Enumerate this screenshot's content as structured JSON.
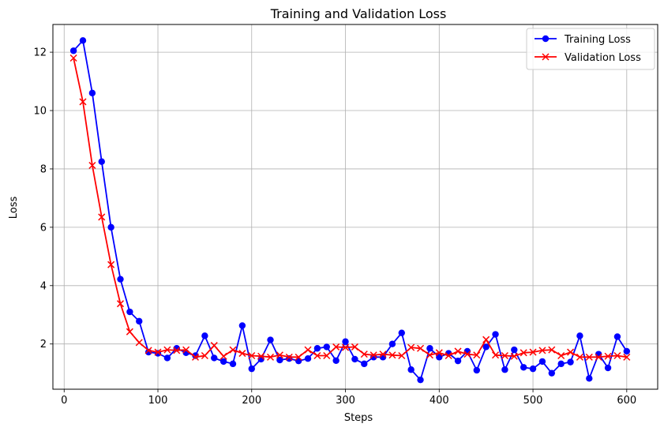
{
  "chart_data": {
    "type": "line",
    "title": "Training and Validation Loss",
    "xlabel": "Steps",
    "ylabel": "Loss",
    "xlim": [
      -12,
      633
    ],
    "ylim": [
      0.45,
      12.95
    ],
    "xticks": [
      0,
      100,
      200,
      300,
      400,
      500,
      600
    ],
    "yticks": [
      2,
      4,
      6,
      8,
      10,
      12
    ],
    "grid": true,
    "legend_position": "top-right",
    "x": [
      10,
      20,
      30,
      40,
      50,
      60,
      70,
      80,
      90,
      100,
      110,
      120,
      130,
      140,
      150,
      160,
      170,
      180,
      190,
      200,
      210,
      220,
      230,
      240,
      250,
      260,
      270,
      280,
      290,
      300,
      310,
      320,
      330,
      340,
      350,
      360,
      370,
      380,
      390,
      400,
      410,
      420,
      430,
      440,
      450,
      460,
      470,
      480,
      490,
      500,
      510,
      520,
      530,
      540,
      550,
      560,
      570,
      580,
      590,
      600
    ],
    "series": [
      {
        "name": "Training Loss",
        "color": "#0000ff",
        "marker": "circle",
        "values": [
          12.05,
          12.4,
          10.6,
          8.25,
          6.0,
          4.22,
          3.1,
          2.78,
          1.72,
          1.68,
          1.52,
          1.85,
          1.7,
          1.6,
          2.28,
          1.52,
          1.4,
          1.32,
          2.63,
          1.15,
          1.48,
          2.14,
          1.45,
          1.5,
          1.42,
          1.5,
          1.85,
          1.9,
          1.43,
          2.08,
          1.48,
          1.32,
          1.55,
          1.55,
          2.0,
          2.38,
          1.12,
          0.77,
          1.85,
          1.55,
          1.68,
          1.42,
          1.75,
          1.1,
          1.9,
          2.33,
          1.12,
          1.8,
          1.2,
          1.15,
          1.4,
          1.0,
          1.32,
          1.38,
          2.28,
          0.82,
          1.65,
          1.18,
          2.25,
          1.75
        ]
      },
      {
        "name": "Validation Loss",
        "color": "#ff0000",
        "marker": "x",
        "values": [
          11.8,
          10.3,
          8.12,
          6.35,
          4.72,
          3.38,
          2.42,
          2.05,
          1.78,
          1.72,
          1.8,
          1.78,
          1.8,
          1.55,
          1.6,
          1.95,
          1.58,
          1.8,
          1.68,
          1.6,
          1.58,
          1.55,
          1.62,
          1.55,
          1.55,
          1.8,
          1.6,
          1.6,
          1.9,
          1.88,
          1.9,
          1.65,
          1.62,
          1.65,
          1.62,
          1.6,
          1.88,
          1.85,
          1.62,
          1.7,
          1.6,
          1.75,
          1.65,
          1.62,
          2.15,
          1.62,
          1.6,
          1.58,
          1.7,
          1.72,
          1.78,
          1.8,
          1.6,
          1.72,
          1.55,
          1.55,
          1.55,
          1.58,
          1.6,
          1.55
        ]
      }
    ]
  }
}
